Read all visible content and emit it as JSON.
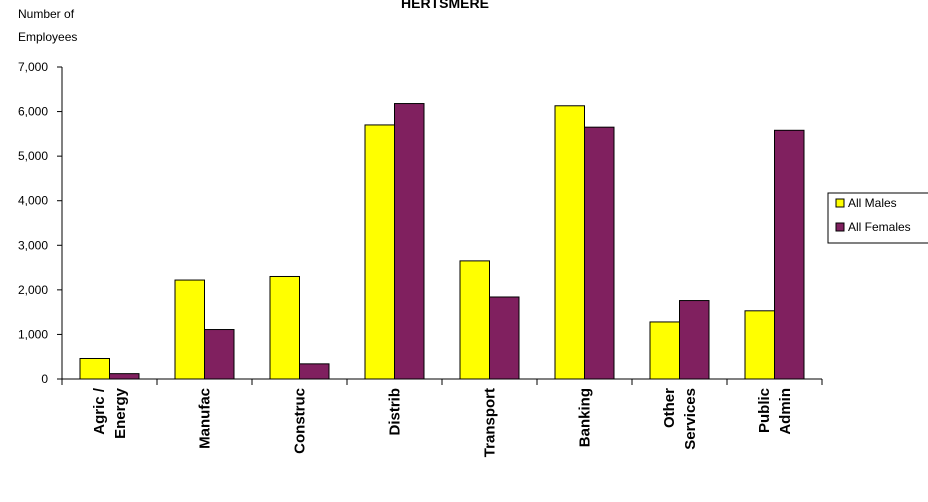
{
  "chart_data": {
    "type": "bar",
    "title": "HERTSMERE",
    "ylabel_lines": [
      "Number of",
      "Employees"
    ],
    "ylim": [
      0,
      7000
    ],
    "yticks": [
      "0",
      "1,000",
      "2,000",
      "3,000",
      "4,000",
      "5,000",
      "6,000",
      "7,000"
    ],
    "ytick_values": [
      0,
      1000,
      2000,
      3000,
      4000,
      5000,
      6000,
      7000
    ],
    "categories": [
      [
        "Agric /",
        "Energy"
      ],
      [
        "Manufac"
      ],
      [
        "Construc"
      ],
      [
        "Distrib"
      ],
      [
        "Transport"
      ],
      [
        "Banking"
      ],
      [
        "Other",
        "Services"
      ],
      [
        "Public",
        "Admin"
      ]
    ],
    "series": [
      {
        "name": "All Males",
        "color": "#ffff00",
        "values": [
          460,
          2220,
          2300,
          5700,
          2650,
          6130,
          1280,
          1530
        ]
      },
      {
        "name": "All Females",
        "color": "#80205f",
        "values": [
          120,
          1110,
          340,
          6180,
          1840,
          5650,
          1760,
          5580
        ]
      }
    ],
    "legend_position": "right",
    "grid": false
  }
}
